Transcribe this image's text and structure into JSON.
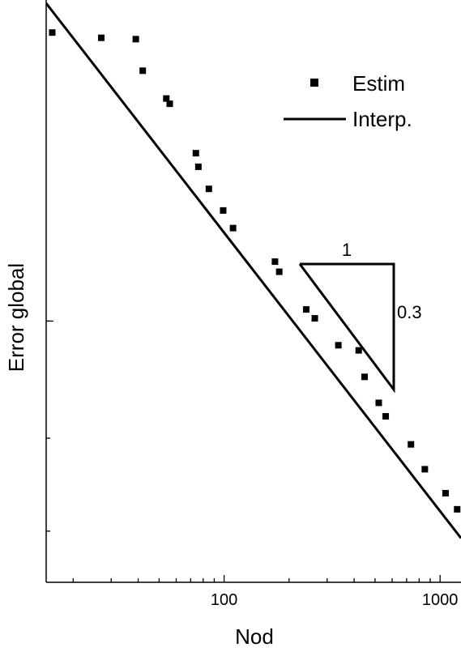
{
  "chart_data": {
    "type": "scatter",
    "title": "",
    "xlabel": "Nod",
    "ylabel": "Error global",
    "x_scale": "log",
    "y_scale": "log",
    "xlim": [
      15,
      1250
    ],
    "ylim": [
      0.08,
      1.0
    ],
    "x_ticks": [
      {
        "value": 100,
        "label": "100"
      },
      {
        "value": 1000,
        "label": "1000"
      }
    ],
    "grid": false,
    "legend": {
      "position": "top-right",
      "entries": [
        {
          "label": "Estim",
          "marker": "square"
        },
        {
          "label": "Interp.",
          "marker": "line"
        }
      ]
    },
    "series": [
      {
        "name": "Estim",
        "kind": "points",
        "marker": "square",
        "color": "#000000",
        "points": [
          {
            "x": 16,
            "y": 0.88
          },
          {
            "x": 27,
            "y": 0.86
          },
          {
            "x": 39,
            "y": 0.855
          },
          {
            "x": 42,
            "y": 0.745
          },
          {
            "x": 54,
            "y": 0.66
          },
          {
            "x": 56,
            "y": 0.645
          },
          {
            "x": 74,
            "y": 0.52
          },
          {
            "x": 76,
            "y": 0.49
          },
          {
            "x": 85,
            "y": 0.445
          },
          {
            "x": 99,
            "y": 0.405
          },
          {
            "x": 110,
            "y": 0.375
          },
          {
            "x": 172,
            "y": 0.324
          },
          {
            "x": 180,
            "y": 0.31
          },
          {
            "x": 240,
            "y": 0.263
          },
          {
            "x": 263,
            "y": 0.253
          },
          {
            "x": 338,
            "y": 0.225
          },
          {
            "x": 420,
            "y": 0.22
          },
          {
            "x": 447,
            "y": 0.196
          },
          {
            "x": 520,
            "y": 0.175
          },
          {
            "x": 560,
            "y": 0.165
          },
          {
            "x": 733,
            "y": 0.146
          },
          {
            "x": 850,
            "y": 0.131
          },
          {
            "x": 1060,
            "y": 0.118
          },
          {
            "x": 1200,
            "y": 0.11
          }
        ]
      },
      {
        "name": "Interp.",
        "kind": "line",
        "color": "#000000",
        "points": [
          {
            "x": 15,
            "y": 1.0
          },
          {
            "x": 1250,
            "y": 0.097
          }
        ]
      }
    ],
    "annotations": [
      {
        "type": "slope-triangle",
        "run_label": "1",
        "rise_label": "0.3"
      }
    ]
  }
}
